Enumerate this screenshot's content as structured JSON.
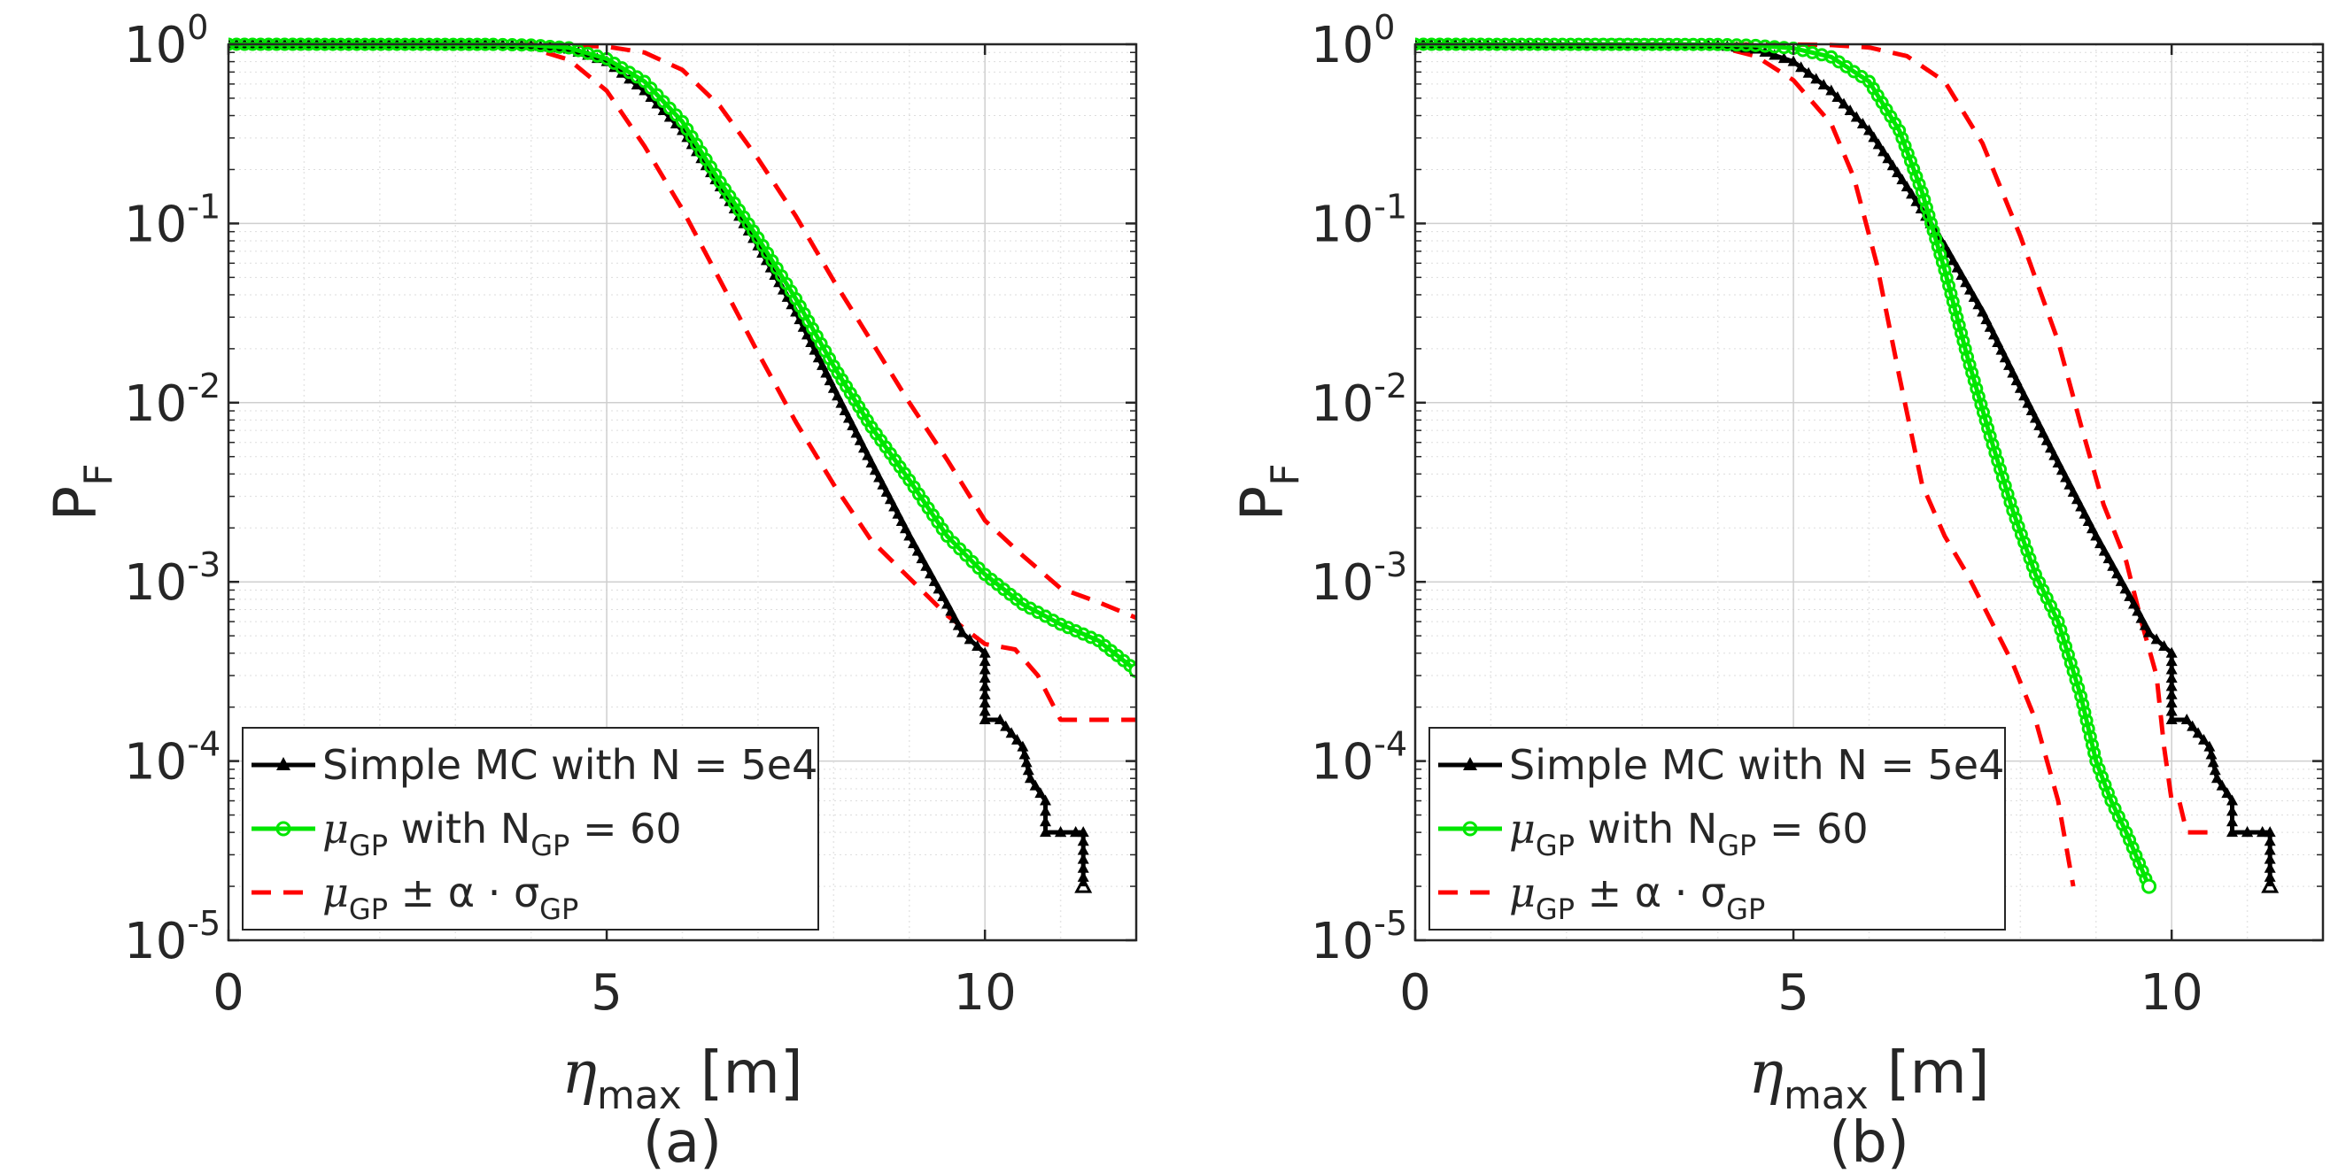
{
  "figure": {
    "panel_labels": [
      "(a)",
      "(b)"
    ]
  },
  "colors": {
    "mc": "#000000",
    "gp": "#00e600",
    "bounds": "#ff0000",
    "grid": "#dddddd",
    "axis": "#262626"
  },
  "chart_data": [
    {
      "type": "line",
      "panel": "(a)",
      "xlabel": "η_max [m]",
      "ylabel": "P_F",
      "yscale": "log",
      "xlim": [
        0,
        12
      ],
      "ylim": [
        1e-05,
        1
      ],
      "xticks": [
        0,
        5,
        10
      ],
      "yticks": [
        1,
        0.1,
        0.01,
        0.001,
        0.0001,
        1e-05
      ],
      "ytick_labels": [
        {
          "base": "10",
          "exp": "0"
        },
        {
          "base": "10",
          "exp": "-1"
        },
        {
          "base": "10",
          "exp": "-2"
        },
        {
          "base": "10",
          "exp": "-3"
        },
        {
          "base": "10",
          "exp": "-4"
        },
        {
          "base": "10",
          "exp": "-5"
        }
      ],
      "legend": {
        "position": "bottom-left",
        "entries": [
          {
            "key": "mc",
            "text": "Simple MC with N = 5e4"
          },
          {
            "key": "gp",
            "mu": "μ",
            "sub": "GP",
            "text": " with N",
            "sub2": "GP",
            "text2": " = 60"
          },
          {
            "key": "bounds",
            "mu": "μ",
            "sub": "GP",
            "text": " ± α · σ",
            "sub2": "GP"
          }
        ]
      },
      "series": [
        {
          "key": "mc",
          "name": "Simple MC with N = 5e4",
          "marker": "triangle",
          "style": "solid",
          "x": [
            0,
            3.5,
            4.0,
            4.5,
            5.0,
            5.5,
            6.0,
            6.5,
            7.0,
            7.5,
            8.0,
            8.5,
            9.0,
            9.5,
            9.7,
            10.0,
            10.0,
            10.2,
            10.5,
            10.6,
            10.8,
            10.8,
            11.0,
            11.0,
            11.2,
            11.2,
            11.3,
            11.3
          ],
          "y": [
            1,
            0.998,
            0.985,
            0.94,
            0.8,
            0.55,
            0.33,
            0.16,
            0.075,
            0.032,
            0.012,
            0.0046,
            0.0018,
            0.00075,
            0.00052,
            0.0004,
            0.00017,
            0.00017,
            0.00012,
            8e-05,
            6e-05,
            4e-05,
            4e-05,
            4e-05,
            4e-05,
            4e-05,
            4e-05,
            2e-05
          ]
        },
        {
          "key": "gp",
          "name": "μGP with NGP = 60",
          "marker": "circle",
          "style": "solid",
          "x": [
            0,
            3.5,
            4.0,
            4.5,
            5.0,
            5.5,
            6.0,
            6.5,
            7.0,
            7.5,
            8.0,
            8.5,
            9.0,
            9.5,
            10.0,
            10.5,
            11.0,
            11.5,
            12.0
          ],
          "y": [
            1,
            0.998,
            0.99,
            0.955,
            0.83,
            0.62,
            0.37,
            0.17,
            0.083,
            0.038,
            0.016,
            0.0073,
            0.0037,
            0.0018,
            0.0011,
            0.00075,
            0.00058,
            0.00047,
            0.00032
          ]
        },
        {
          "key": "upper",
          "name": "μGP + α·σGP",
          "style": "dashed",
          "x": [
            0,
            4.0,
            4.5,
            5.0,
            5.5,
            6.0,
            6.5,
            7.0,
            7.5,
            8.0,
            8.5,
            9.0,
            9.5,
            10.0,
            10.5,
            11.0,
            11.5,
            12.0
          ],
          "y": [
            1,
            0.999,
            0.99,
            0.97,
            0.9,
            0.72,
            0.45,
            0.23,
            0.11,
            0.048,
            0.022,
            0.01,
            0.0048,
            0.0022,
            0.0014,
            0.00092,
            0.00077,
            0.00063
          ]
        },
        {
          "key": "lower",
          "name": "μGP − α·σGP",
          "style": "dashed",
          "x": [
            0,
            3.5,
            4.0,
            4.5,
            5.0,
            5.5,
            6.0,
            6.5,
            7.0,
            7.5,
            8.0,
            8.5,
            9.0,
            9.5,
            10.0,
            10.4,
            10.7,
            11.0,
            11.5,
            12.0
          ],
          "y": [
            1,
            0.995,
            0.95,
            0.82,
            0.55,
            0.27,
            0.12,
            0.048,
            0.019,
            0.0078,
            0.0035,
            0.0017,
            0.00105,
            0.00065,
            0.00045,
            0.00042,
            0.0003,
            0.00017,
            0.00017,
            0.00017
          ]
        }
      ]
    },
    {
      "type": "line",
      "panel": "(b)",
      "xlabel": "η_max [m]",
      "ylabel": "P_F",
      "yscale": "log",
      "xlim": [
        0,
        12
      ],
      "ylim": [
        1e-05,
        1
      ],
      "xticks": [
        0,
        5,
        10
      ],
      "yticks": [
        1,
        0.1,
        0.01,
        0.001,
        0.0001,
        1e-05
      ],
      "ytick_labels": [
        {
          "base": "10",
          "exp": "0"
        },
        {
          "base": "10",
          "exp": "-1"
        },
        {
          "base": "10",
          "exp": "-2"
        },
        {
          "base": "10",
          "exp": "-3"
        },
        {
          "base": "10",
          "exp": "-4"
        },
        {
          "base": "10",
          "exp": "-5"
        }
      ],
      "legend": {
        "position": "bottom-left",
        "entries": [
          {
            "key": "mc",
            "text": "Simple MC with N = 5e4"
          },
          {
            "key": "gp",
            "mu": "μ",
            "sub": "GP",
            "text": " with N",
            "sub2": "GP",
            "text2": " = 60"
          },
          {
            "key": "bounds",
            "mu": "μ",
            "sub": "GP",
            "text": " ± α · σ",
            "sub2": "GP"
          }
        ]
      },
      "series": [
        {
          "key": "mc",
          "name": "Simple MC with N = 5e4",
          "marker": "triangle",
          "style": "solid",
          "x": [
            0,
            3.5,
            4.0,
            4.5,
            5.0,
            5.5,
            6.0,
            6.5,
            7.0,
            7.5,
            8.0,
            8.5,
            9.0,
            9.5,
            9.7,
            10.0,
            10.0,
            10.2,
            10.5,
            10.6,
            10.8,
            10.8,
            11.0,
            11.0,
            11.2,
            11.2,
            11.3,
            11.3
          ],
          "y": [
            1,
            0.998,
            0.985,
            0.94,
            0.8,
            0.55,
            0.33,
            0.16,
            0.075,
            0.032,
            0.012,
            0.0046,
            0.0018,
            0.00075,
            0.00052,
            0.0004,
            0.00017,
            0.00017,
            0.00012,
            8e-05,
            6e-05,
            4e-05,
            4e-05,
            4e-05,
            4e-05,
            4e-05,
            4e-05,
            2e-05
          ]
        },
        {
          "key": "gp",
          "name": "μGP with NGP = 60",
          "marker": "circle",
          "style": "solid",
          "x": [
            0,
            4.0,
            4.5,
            5.0,
            5.5,
            6.0,
            6.4,
            6.7,
            7.0,
            7.3,
            7.6,
            7.9,
            8.2,
            8.5,
            8.8,
            9.0,
            9.2,
            9.4,
            9.7
          ],
          "y": [
            1,
            0.997,
            0.985,
            0.95,
            0.85,
            0.62,
            0.33,
            0.15,
            0.055,
            0.018,
            0.0065,
            0.0025,
            0.0011,
            0.0006,
            0.00023,
            0.0001,
            6e-05,
            4e-05,
            2e-05
          ]
        },
        {
          "key": "upper",
          "name": "μGP + α·σGP",
          "style": "dashed",
          "x": [
            0,
            5.0,
            5.5,
            6.0,
            6.5,
            7.0,
            7.5,
            8.0,
            8.5,
            8.8,
            9.1,
            9.4,
            9.6,
            9.8,
            9.9,
            10.0,
            10.1,
            10.2,
            10.4,
            10.6
          ],
          "y": [
            1,
            0.997,
            0.99,
            0.96,
            0.86,
            0.62,
            0.28,
            0.085,
            0.022,
            0.0075,
            0.0027,
            0.0013,
            0.0006,
            0.0003,
            0.00012,
            6e-05,
            6e-05,
            4e-05,
            4e-05,
            4e-05
          ]
        },
        {
          "key": "lower",
          "name": "μGP − α·σGP",
          "style": "dashed",
          "x": [
            0,
            3.5,
            4.0,
            4.5,
            5.0,
            5.5,
            5.8,
            6.1,
            6.4,
            6.7,
            7.0,
            7.3,
            7.6,
            7.9,
            8.2,
            8.5,
            8.7
          ],
          "y": [
            1,
            0.997,
            0.97,
            0.86,
            0.63,
            0.36,
            0.18,
            0.06,
            0.014,
            0.0035,
            0.0018,
            0.0011,
            0.00062,
            0.00035,
            0.00017,
            6e-05,
            2e-05
          ]
        }
      ]
    }
  ]
}
